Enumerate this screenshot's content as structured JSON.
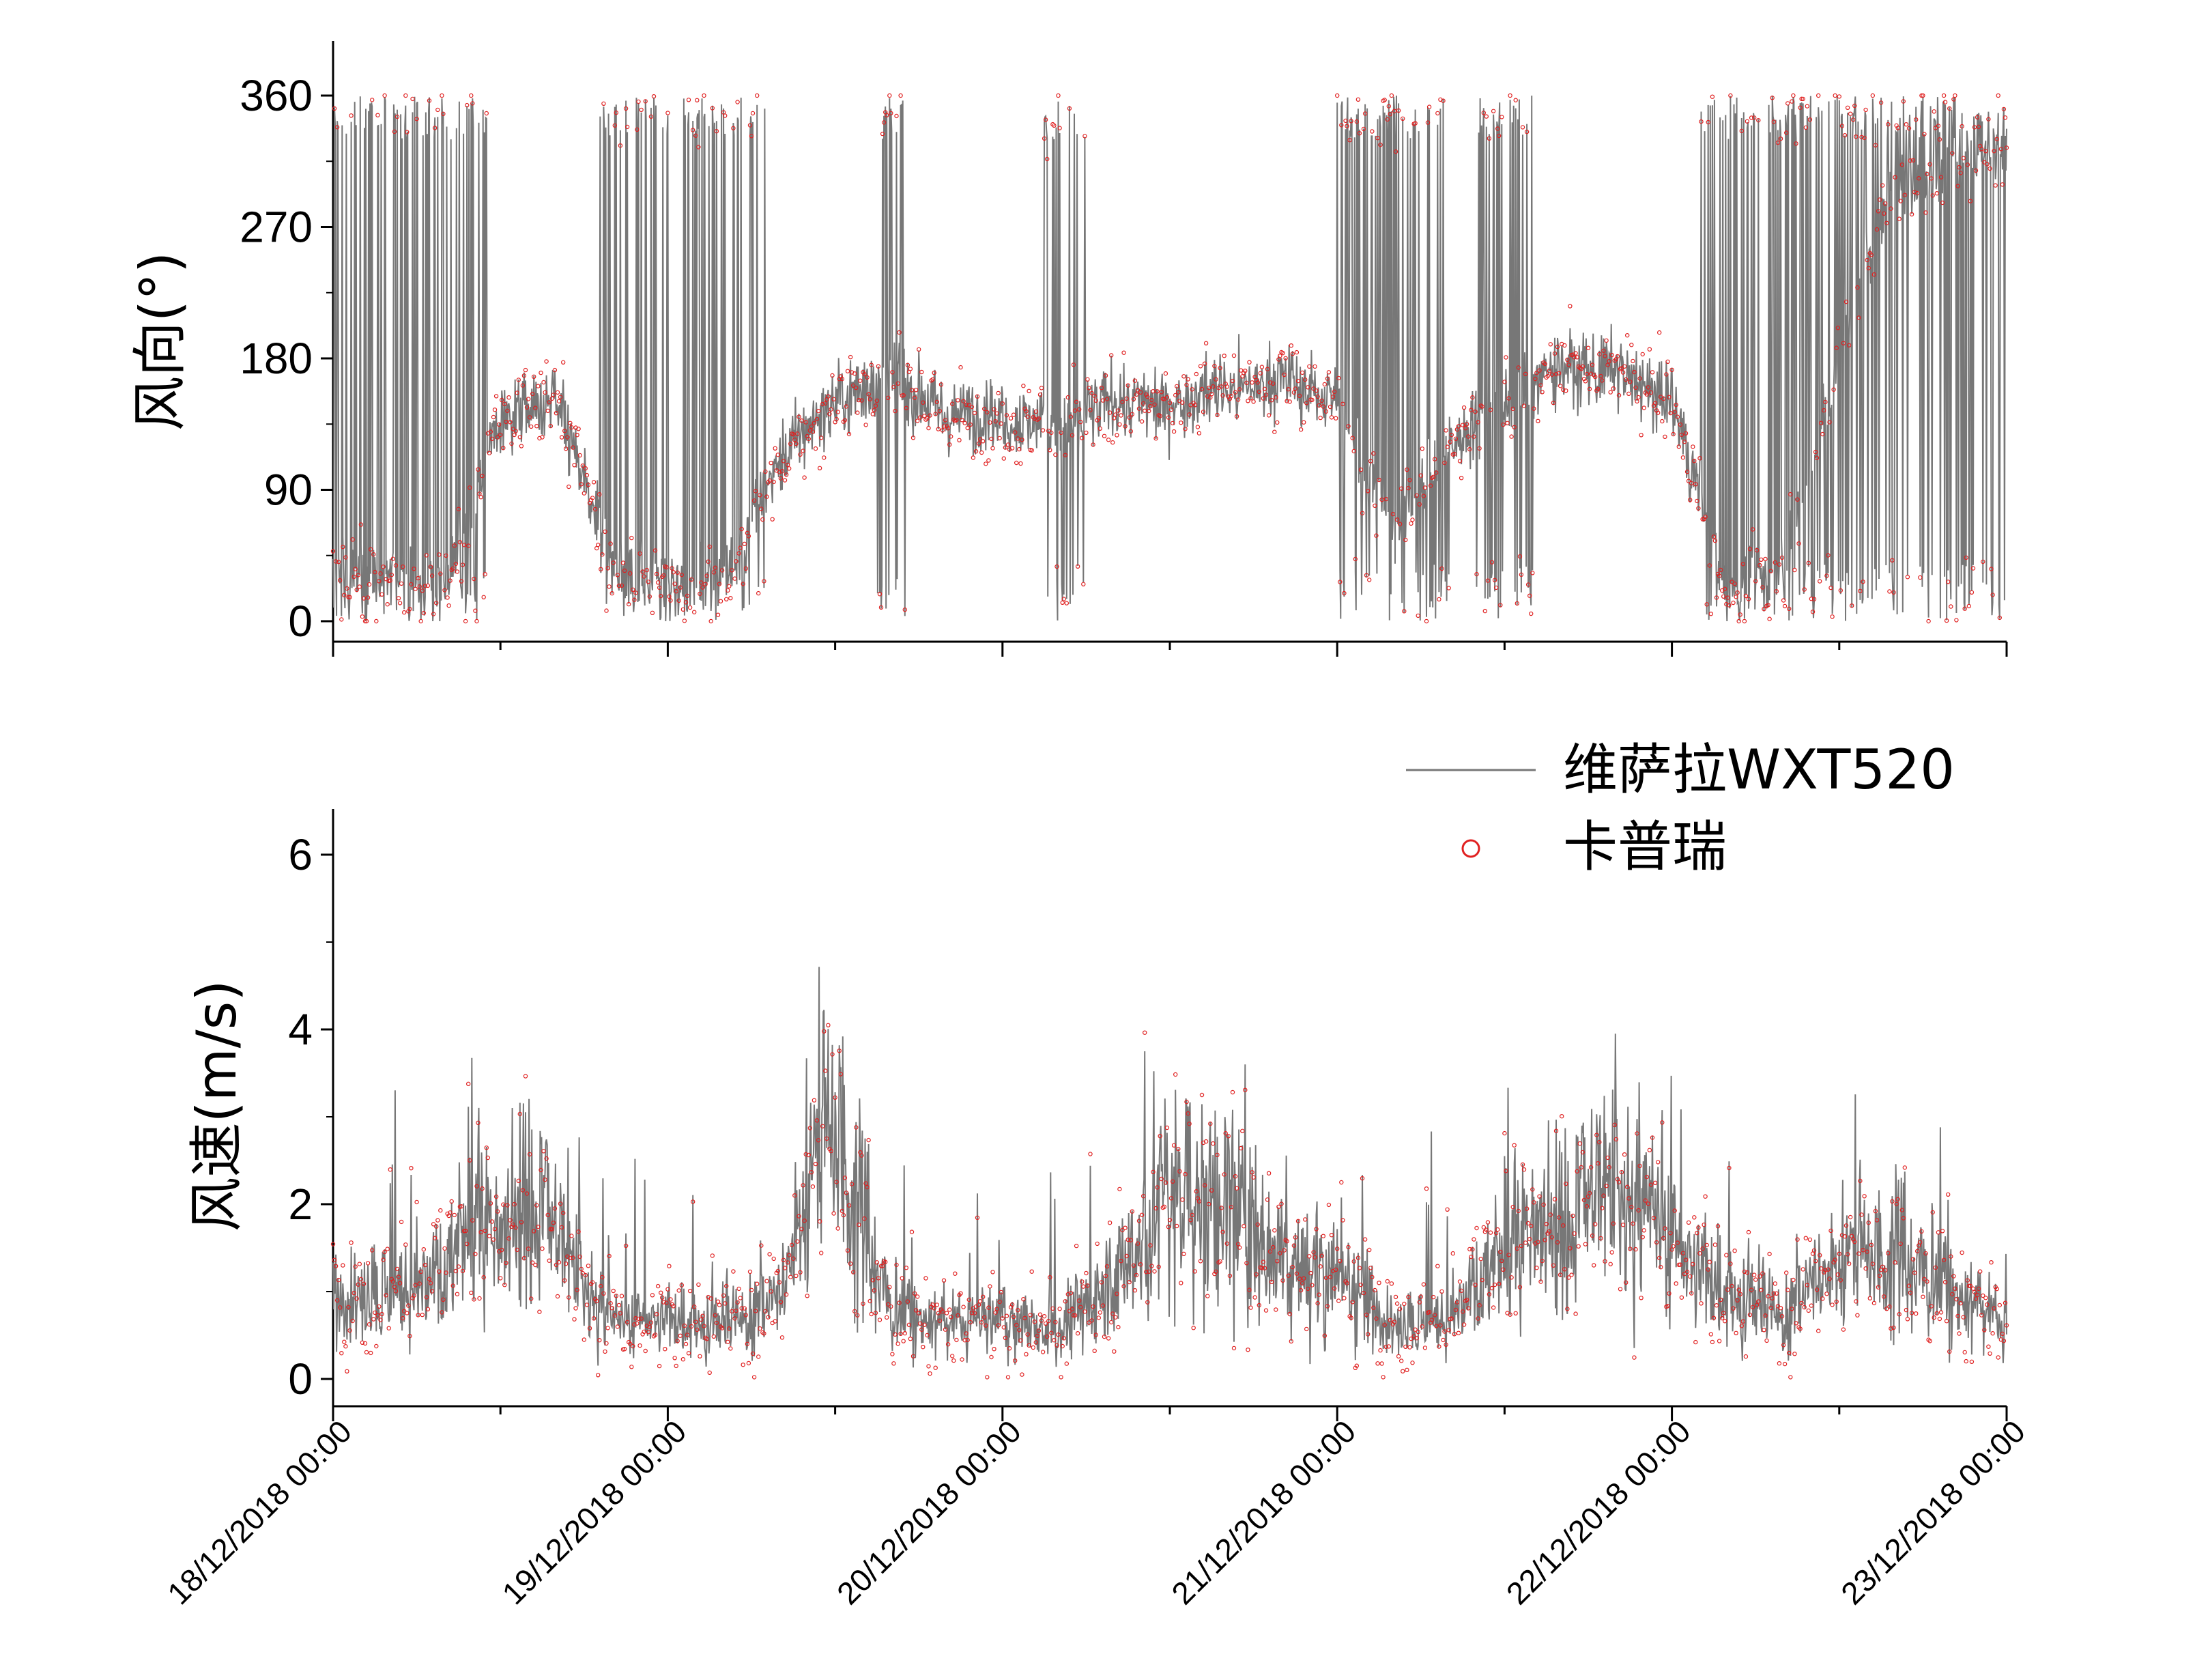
{
  "chart_data": [
    {
      "type": "line",
      "panel": "top",
      "ylabel": "风向(°)",
      "ylim": [
        0,
        360
      ],
      "yticks": [
        0,
        90,
        180,
        270,
        360
      ],
      "xlim": [
        "18/12/2018 00:00",
        "23/12/2018 00:00"
      ],
      "series": [
        {
          "name": "维萨拉WXT520",
          "style": "line",
          "color": "#777777",
          "x_hours": [
            0,
            4,
            8,
            12,
            16,
            20,
            24,
            28,
            32,
            36,
            40,
            44,
            48,
            52,
            56,
            60,
            64,
            68,
            72,
            76,
            80,
            84,
            88,
            92,
            96,
            100,
            104,
            108,
            112,
            116,
            120
          ],
          "values": [
            30,
            25,
            20,
            140,
            150,
            40,
            20,
            30,
            110,
            150,
            170,
            140,
            140,
            130,
            150,
            150,
            160,
            165,
            150,
            60,
            120,
            150,
            175,
            170,
            150,
            20,
            40,
            180,
            300,
            310,
            330
          ],
          "wrap_hours": [
            [
              0,
              11
            ],
            [
              19,
              31
            ],
            [
              39,
              41
            ],
            [
              51,
              54
            ],
            [
              72,
              80
            ],
            [
              82,
              86
            ],
            [
              98,
              120
            ]
          ]
        },
        {
          "name": "卡普瑞",
          "style": "markers",
          "color": "#e02020",
          "follows": "维萨拉WXT520"
        }
      ]
    },
    {
      "type": "line",
      "panel": "bottom",
      "ylabel": "风速(m/s)",
      "ylim": [
        0,
        6
      ],
      "yticks": [
        0,
        2,
        4,
        6
      ],
      "xlim": [
        "18/12/2018 00:00",
        "23/12/2018 00:00"
      ],
      "xticks": [
        "18/12/2018 00:00",
        "19/12/2018 00:00",
        "20/12/2018 00:00",
        "21/12/2018 00:00",
        "22/12/2018 00:00",
        "23/12/2018 00:00"
      ],
      "series": [
        {
          "name": "维萨拉WXT520",
          "style": "line",
          "color": "#777777",
          "x_hours": [
            0,
            4,
            8,
            10,
            12,
            14,
            16,
            20,
            24,
            28,
            32,
            34,
            36,
            38,
            40,
            44,
            48,
            52,
            56,
            60,
            64,
            68,
            72,
            76,
            80,
            84,
            88,
            92,
            96,
            100,
            104,
            108,
            112,
            116,
            120
          ],
          "values": [
            0.9,
            1.0,
            1.2,
            1.8,
            1.5,
            2.2,
            1.6,
            0.6,
            0.7,
            0.6,
            0.9,
            2.3,
            3.0,
            1.8,
            0.8,
            0.6,
            0.7,
            0.5,
            1.2,
            2.2,
            2.0,
            1.4,
            1.2,
            0.6,
            0.7,
            1.4,
            1.8,
            2.2,
            1.5,
            1.0,
            0.7,
            1.4,
            1.5,
            1.0,
            0.6
          ]
        },
        {
          "name": "卡普瑞",
          "style": "markers",
          "color": "#e02020",
          "follows": "维萨拉WXT520"
        }
      ]
    }
  ],
  "legend": {
    "placement": "above-bottom-panel-right",
    "entries": [
      {
        "label": "维萨拉WXT520",
        "symbol": "line",
        "color": "#777777"
      },
      {
        "label": "卡普瑞",
        "symbol": "circle",
        "color": "#e02020"
      }
    ]
  },
  "colors": {
    "line": "#777777",
    "markers": "#e02020",
    "axis": "#000000"
  }
}
